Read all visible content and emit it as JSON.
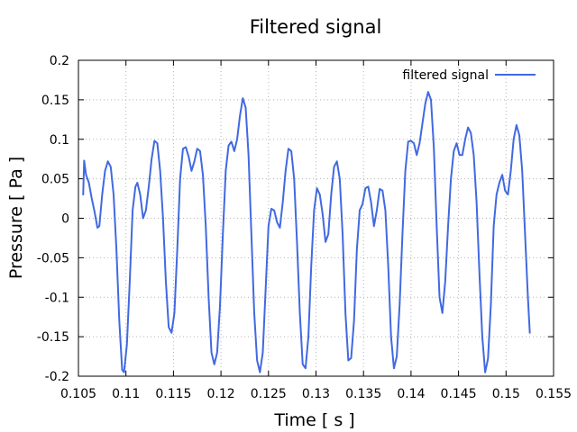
{
  "chart_data": {
    "type": "line",
    "title": "Filtered signal",
    "xlabel": "Time [ s ]",
    "ylabel": "Pressure [ Pa ]",
    "xlim": [
      0.105,
      0.155
    ],
    "ylim": [
      -0.2,
      0.2
    ],
    "x_ticks": [
      0.105,
      0.11,
      0.115,
      0.12,
      0.125,
      0.13,
      0.135,
      0.14,
      0.145,
      0.15,
      0.155
    ],
    "x_tick_labels": [
      "0.105",
      "0.11",
      "0.115",
      "0.12",
      "0.125",
      "0.13",
      "0.135",
      "0.14",
      "0.145",
      "0.15",
      "0.155"
    ],
    "y_ticks": [
      -0.2,
      -0.15,
      -0.1,
      -0.05,
      0,
      0.05,
      0.1,
      0.15,
      0.2
    ],
    "y_tick_labels": [
      "-0.2",
      "-0.15",
      "-0.1",
      "-0.05",
      "0",
      "0.05",
      "0.1",
      "0.15",
      "0.2"
    ],
    "grid": true,
    "legend_position": "top-right",
    "series": [
      {
        "name": "filtered signal",
        "color": "#4169e1",
        "points": [
          [
            0.1055,
            0.03
          ],
          [
            0.1056,
            0.073
          ],
          [
            0.1058,
            0.055
          ],
          [
            0.1061,
            0.045
          ],
          [
            0.1064,
            0.025
          ],
          [
            0.1067,
            0.008
          ],
          [
            0.107,
            -0.012
          ],
          [
            0.1072,
            -0.01
          ],
          [
            0.1075,
            0.03
          ],
          [
            0.1078,
            0.06
          ],
          [
            0.1081,
            0.072
          ],
          [
            0.1084,
            0.065
          ],
          [
            0.1087,
            0.03
          ],
          [
            0.109,
            -0.04
          ],
          [
            0.1093,
            -0.13
          ],
          [
            0.1096,
            -0.192
          ],
          [
            0.1098,
            -0.195
          ],
          [
            0.1101,
            -0.16
          ],
          [
            0.1104,
            -0.08
          ],
          [
            0.1107,
            0.01
          ],
          [
            0.111,
            0.04
          ],
          [
            0.1112,
            0.045
          ],
          [
            0.1115,
            0.03
          ],
          [
            0.1118,
            0.0
          ],
          [
            0.1121,
            0.01
          ],
          [
            0.1124,
            0.04
          ],
          [
            0.1127,
            0.075
          ],
          [
            0.113,
            0.098
          ],
          [
            0.1133,
            0.095
          ],
          [
            0.1136,
            0.06
          ],
          [
            0.1139,
            0.0
          ],
          [
            0.1142,
            -0.08
          ],
          [
            0.1145,
            -0.138
          ],
          [
            0.1148,
            -0.145
          ],
          [
            0.1151,
            -0.12
          ],
          [
            0.1154,
            -0.04
          ],
          [
            0.1157,
            0.05
          ],
          [
            0.116,
            0.088
          ],
          [
            0.1163,
            0.09
          ],
          [
            0.1166,
            0.078
          ],
          [
            0.1169,
            0.06
          ],
          [
            0.1172,
            0.072
          ],
          [
            0.1175,
            0.088
          ],
          [
            0.1178,
            0.085
          ],
          [
            0.1181,
            0.055
          ],
          [
            0.1184,
            -0.01
          ],
          [
            0.1187,
            -0.1
          ],
          [
            0.119,
            -0.17
          ],
          [
            0.1193,
            -0.185
          ],
          [
            0.1196,
            -0.17
          ],
          [
            0.1199,
            -0.11
          ],
          [
            0.1202,
            -0.02
          ],
          [
            0.1205,
            0.06
          ],
          [
            0.1208,
            0.092
          ],
          [
            0.1211,
            0.097
          ],
          [
            0.1214,
            0.085
          ],
          [
            0.1217,
            0.1
          ],
          [
            0.122,
            0.13
          ],
          [
            0.1223,
            0.152
          ],
          [
            0.1226,
            0.14
          ],
          [
            0.1229,
            0.08
          ],
          [
            0.1232,
            -0.02
          ],
          [
            0.1235,
            -0.12
          ],
          [
            0.1238,
            -0.18
          ],
          [
            0.1241,
            -0.195
          ],
          [
            0.1244,
            -0.17
          ],
          [
            0.1247,
            -0.09
          ],
          [
            0.125,
            -0.01
          ],
          [
            0.1253,
            0.012
          ],
          [
            0.1256,
            0.01
          ],
          [
            0.1259,
            -0.005
          ],
          [
            0.1262,
            -0.012
          ],
          [
            0.1265,
            0.02
          ],
          [
            0.1268,
            0.06
          ],
          [
            0.1271,
            0.088
          ],
          [
            0.1274,
            0.085
          ],
          [
            0.1277,
            0.05
          ],
          [
            0.128,
            -0.03
          ],
          [
            0.1283,
            -0.12
          ],
          [
            0.1286,
            -0.185
          ],
          [
            0.1289,
            -0.19
          ],
          [
            0.1292,
            -0.15
          ],
          [
            0.1295,
            -0.06
          ],
          [
            0.1298,
            0.01
          ],
          [
            0.1301,
            0.038
          ],
          [
            0.1304,
            0.03
          ],
          [
            0.1307,
            0.005
          ],
          [
            0.131,
            -0.03
          ],
          [
            0.1313,
            -0.02
          ],
          [
            0.1316,
            0.03
          ],
          [
            0.1319,
            0.065
          ],
          [
            0.1322,
            0.072
          ],
          [
            0.1325,
            0.05
          ],
          [
            0.1328,
            -0.02
          ],
          [
            0.1331,
            -0.12
          ],
          [
            0.1334,
            -0.18
          ],
          [
            0.1337,
            -0.177
          ],
          [
            0.134,
            -0.13
          ],
          [
            0.1343,
            -0.04
          ],
          [
            0.1346,
            0.01
          ],
          [
            0.1349,
            0.018
          ],
          [
            0.1352,
            0.038
          ],
          [
            0.1355,
            0.04
          ],
          [
            0.1358,
            0.02
          ],
          [
            0.1361,
            -0.01
          ],
          [
            0.1364,
            0.01
          ],
          [
            0.1367,
            0.037
          ],
          [
            0.137,
            0.035
          ],
          [
            0.1373,
            0.01
          ],
          [
            0.1376,
            -0.06
          ],
          [
            0.1379,
            -0.15
          ],
          [
            0.1382,
            -0.19
          ],
          [
            0.1385,
            -0.175
          ],
          [
            0.1388,
            -0.11
          ],
          [
            0.1391,
            -0.02
          ],
          [
            0.1394,
            0.06
          ],
          [
            0.1397,
            0.097
          ],
          [
            0.14,
            0.098
          ],
          [
            0.1403,
            0.095
          ],
          [
            0.1406,
            0.08
          ],
          [
            0.1409,
            0.095
          ],
          [
            0.1412,
            0.12
          ],
          [
            0.1415,
            0.145
          ],
          [
            0.1418,
            0.16
          ],
          [
            0.1421,
            0.15
          ],
          [
            0.1424,
            0.09
          ],
          [
            0.1427,
            -0.01
          ],
          [
            0.143,
            -0.1
          ],
          [
            0.1433,
            -0.12
          ],
          [
            0.1436,
            -0.08
          ],
          [
            0.1439,
            -0.01
          ],
          [
            0.1442,
            0.05
          ],
          [
            0.1445,
            0.085
          ],
          [
            0.1448,
            0.095
          ],
          [
            0.1451,
            0.08
          ],
          [
            0.1454,
            0.08
          ],
          [
            0.1457,
            0.1
          ],
          [
            0.146,
            0.115
          ],
          [
            0.1463,
            0.108
          ],
          [
            0.1466,
            0.08
          ],
          [
            0.1469,
            0.02
          ],
          [
            0.1472,
            -0.07
          ],
          [
            0.1475,
            -0.15
          ],
          [
            0.1478,
            -0.195
          ],
          [
            0.1481,
            -0.178
          ],
          [
            0.1484,
            -0.11
          ],
          [
            0.1487,
            -0.01
          ],
          [
            0.149,
            0.03
          ],
          [
            0.1493,
            0.045
          ],
          [
            0.1496,
            0.055
          ],
          [
            0.1499,
            0.035
          ],
          [
            0.1502,
            0.03
          ],
          [
            0.1505,
            0.06
          ],
          [
            0.1508,
            0.1
          ],
          [
            0.1511,
            0.118
          ],
          [
            0.1514,
            0.105
          ],
          [
            0.1517,
            0.06
          ],
          [
            0.152,
            -0.02
          ],
          [
            0.1523,
            -0.1
          ],
          [
            0.1525,
            -0.145
          ]
        ]
      }
    ]
  }
}
